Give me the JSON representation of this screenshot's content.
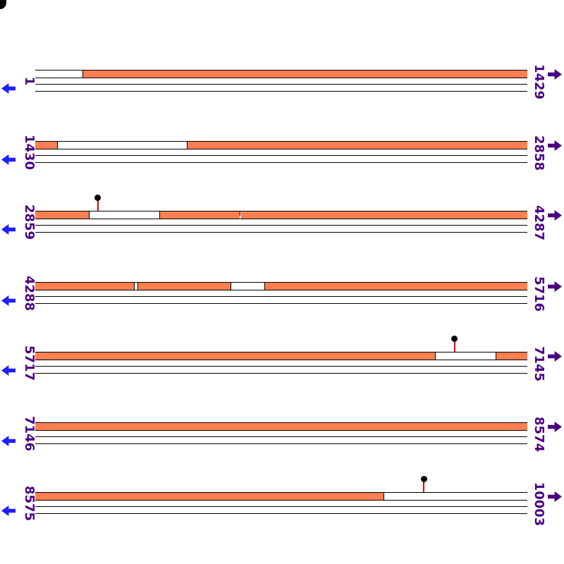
{
  "colors": {
    "feature": "#FF7F50",
    "coordinate_label": "#4B0082",
    "left_arrow": "#1F1FFF",
    "right_arrow": "#4B0082",
    "marker_stem": "#EE0000",
    "marker_dot": "#000000"
  },
  "icons": {
    "left_arrow": "left-arrow-icon",
    "right_arrow": "right-arrow-icon",
    "marker": "lollipop-marker-icon",
    "corner": "corner-mark"
  },
  "rows": [
    {
      "start_label": "1",
      "end_label": "1429",
      "segments": [
        {
          "from": 0.0,
          "to": 0.096,
          "type": "empty"
        },
        {
          "from": 0.096,
          "to": 1.0,
          "type": "feature"
        }
      ],
      "markers": []
    },
    {
      "start_label": "1430",
      "end_label": "2858",
      "segments": [
        {
          "from": 0.0,
          "to": 0.0444,
          "type": "feature"
        },
        {
          "from": 0.0444,
          "to": 0.308,
          "type": "empty"
        },
        {
          "from": 0.308,
          "to": 1.0,
          "type": "feature"
        }
      ],
      "markers": []
    },
    {
      "start_label": "2859",
      "end_label": "4287",
      "segments": [
        {
          "from": 0.0,
          "to": 0.1089,
          "type": "feature"
        },
        {
          "from": 0.1089,
          "to": 0.2521,
          "type": "empty"
        },
        {
          "from": 0.2521,
          "to": 0.4155,
          "type": "feature"
        },
        {
          "from": 0.4155,
          "to": 0.4184,
          "type": "notch"
        },
        {
          "from": 0.4184,
          "to": 1.0,
          "type": "feature"
        }
      ],
      "markers": [
        {
          "pos": 0.1275
        }
      ]
    },
    {
      "start_label": "4288",
      "end_label": "5716",
      "segments": [
        {
          "from": 0.0,
          "to": 0.2006,
          "type": "feature"
        },
        {
          "from": 0.2006,
          "to": 0.2077,
          "type": "empty"
        },
        {
          "from": 0.2077,
          "to": 0.3968,
          "type": "feature"
        },
        {
          "from": 0.3968,
          "to": 0.4656,
          "type": "empty"
        },
        {
          "from": 0.4656,
          "to": 1.0,
          "type": "feature"
        }
      ],
      "markers": []
    },
    {
      "start_label": "5717",
      "end_label": "7145",
      "segments": [
        {
          "from": 0.0,
          "to": 0.8123,
          "type": "feature"
        },
        {
          "from": 0.8123,
          "to": 0.9355,
          "type": "empty"
        },
        {
          "from": 0.9355,
          "to": 1.0,
          "type": "feature"
        }
      ],
      "markers": [
        {
          "pos": 0.8524
        }
      ]
    },
    {
      "start_label": "7146",
      "end_label": "8574",
      "segments": [
        {
          "from": 0.0,
          "to": 1.0,
          "type": "feature"
        }
      ],
      "markers": []
    },
    {
      "start_label": "8575",
      "end_label": "10003",
      "segments": [
        {
          "from": 0.0,
          "to": 0.7077,
          "type": "feature"
        },
        {
          "from": 0.7077,
          "to": 1.0,
          "type": "empty"
        }
      ],
      "markers": [
        {
          "pos": 0.7894
        }
      ]
    }
  ]
}
